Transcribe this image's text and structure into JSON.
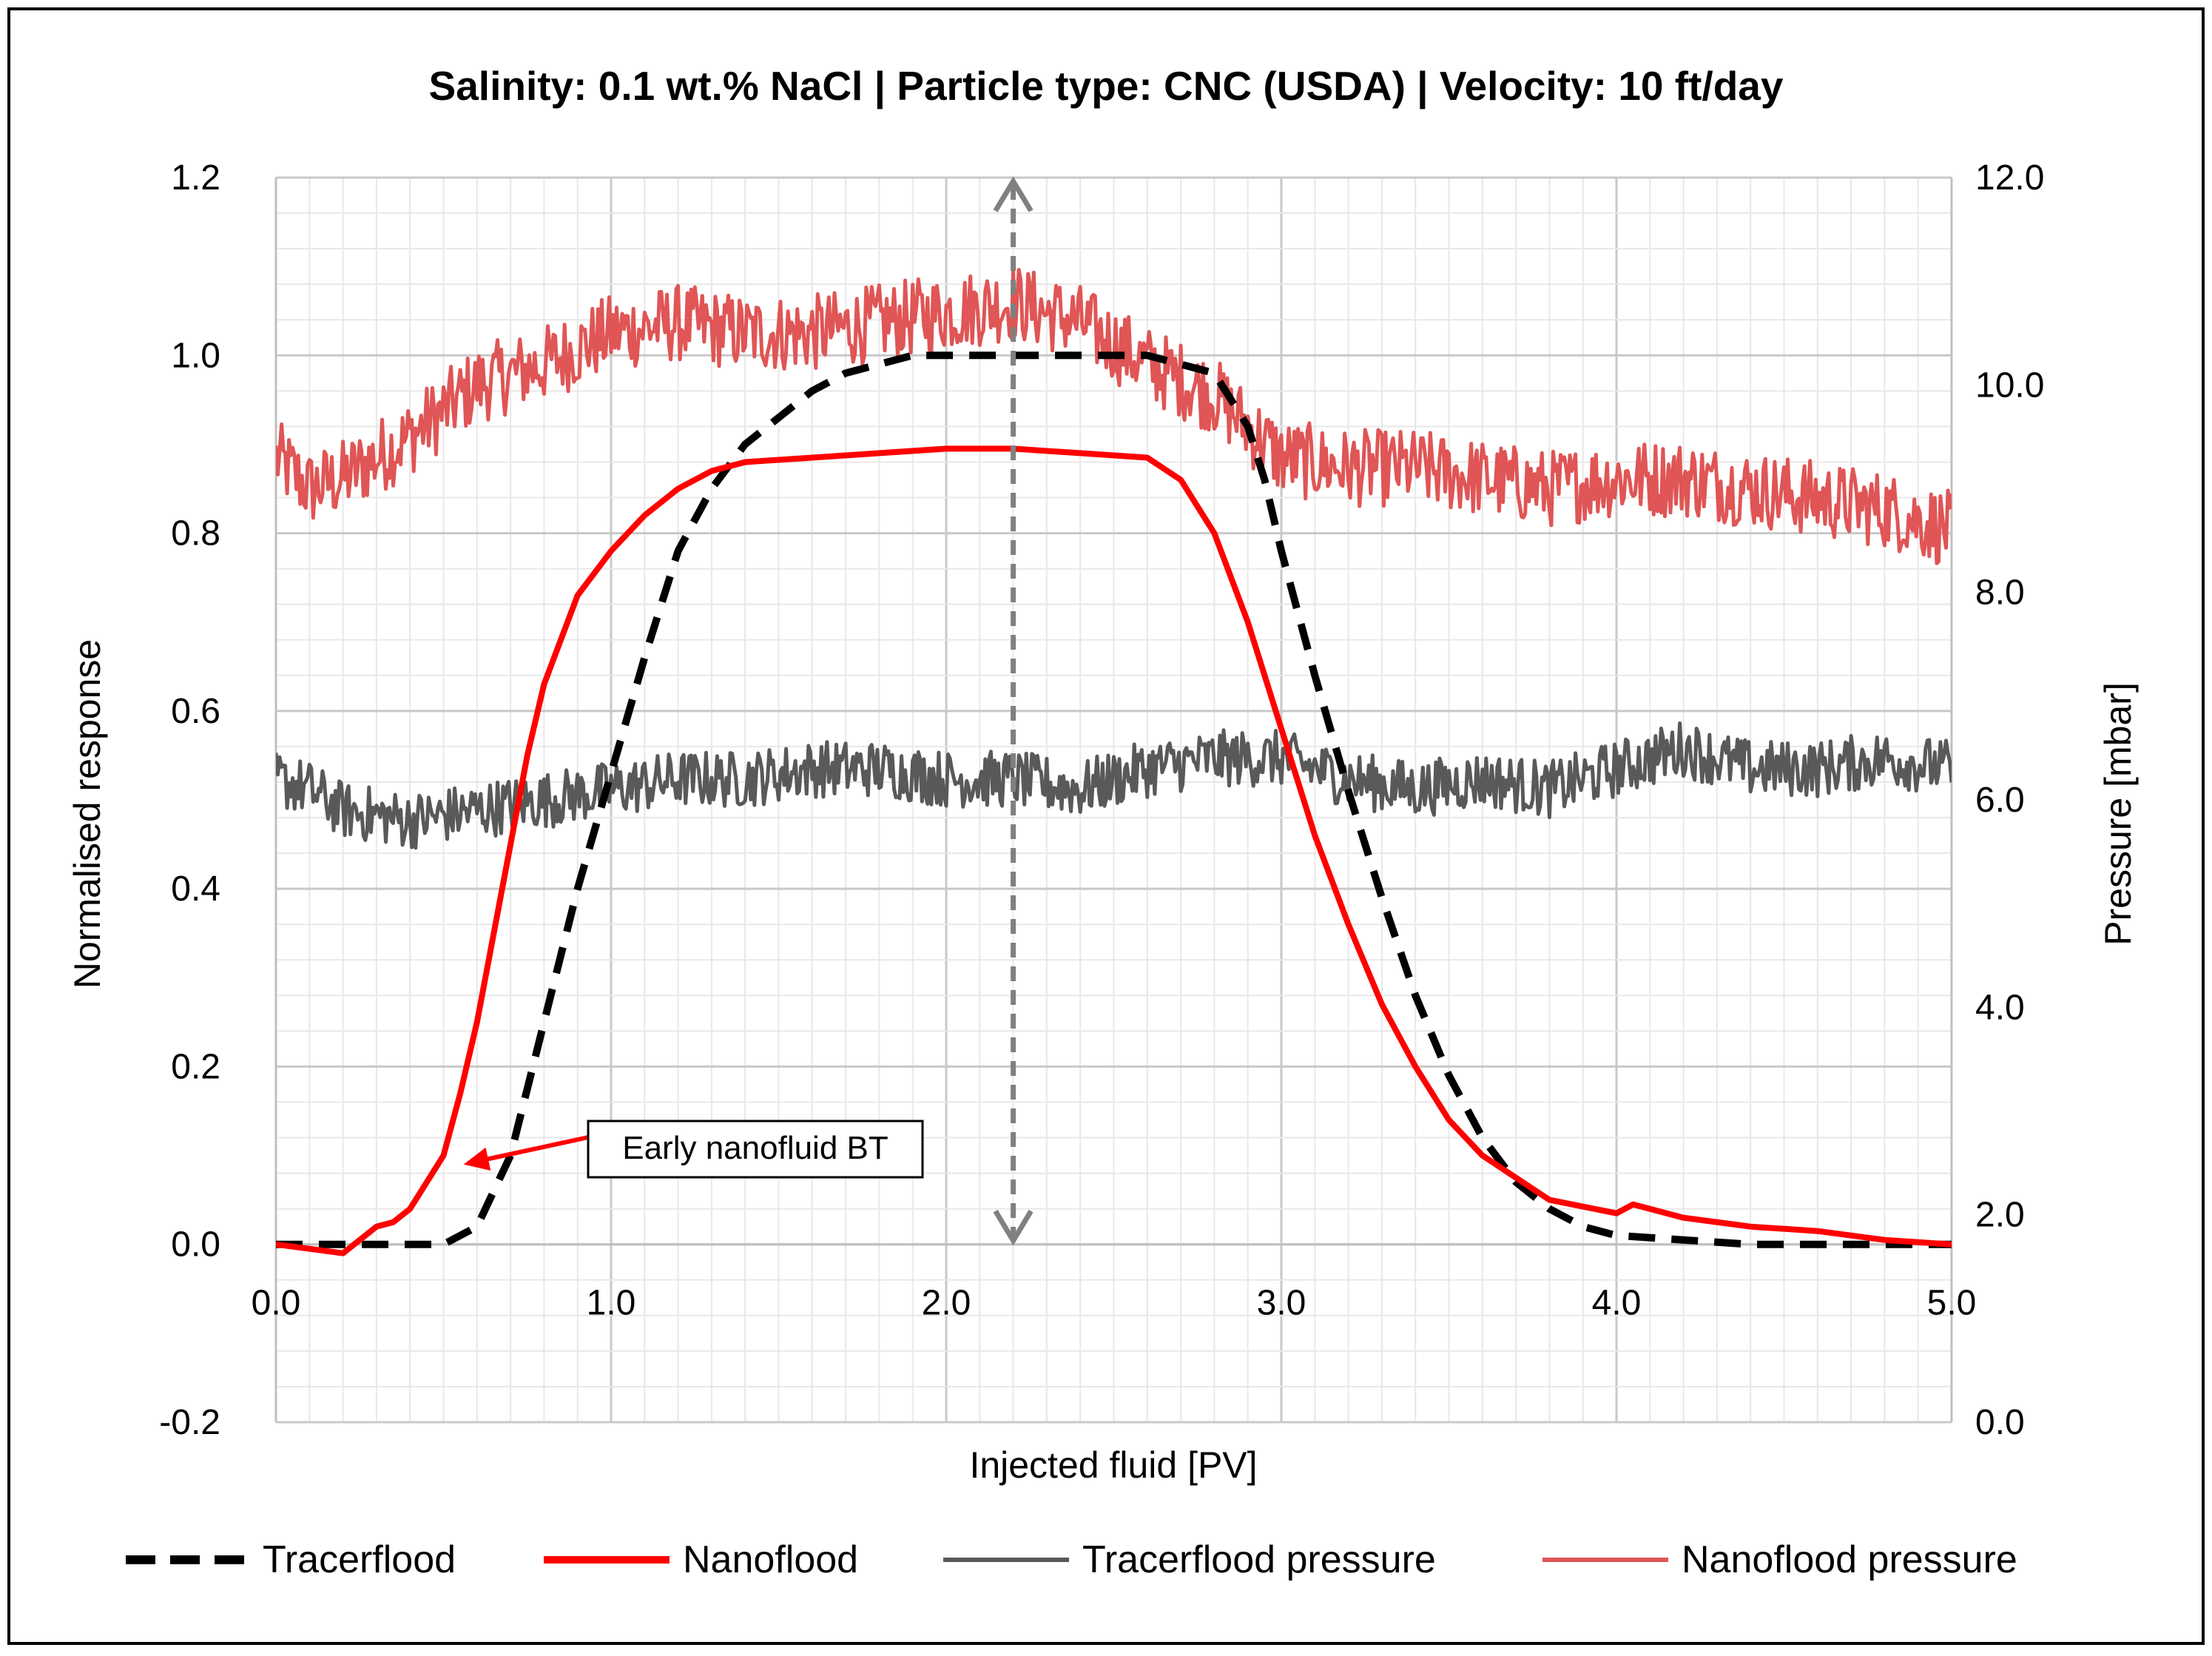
{
  "chart_data": {
    "type": "line",
    "title": "Salinity: 0.1 wt.% NaCl | Particle type: CNC (USDA) | Velocity: 10 ft/day",
    "xlabel": "Injected fluid [PV]",
    "ylabel": "Normalised response",
    "y2label": "Pressure [mbar]",
    "xlim": [
      0,
      5
    ],
    "ylim": [
      -0.2,
      1.2
    ],
    "y2lim": [
      0,
      12
    ],
    "x_ticks": [
      "0.0",
      "1.0",
      "2.0",
      "3.0",
      "4.0",
      "5.0"
    ],
    "y_ticks": [
      "-0.2",
      "0.0",
      "0.2",
      "0.4",
      "0.6",
      "0.8",
      "1.0",
      "1.2"
    ],
    "y2_ticks": [
      "0.0",
      "2.0",
      "4.0",
      "6.0",
      "8.0",
      "10.0",
      "12.0"
    ],
    "grid": true,
    "legend_position": "bottom",
    "colors": {
      "tracerflood": "#000000",
      "nanoflood": "#ff0000",
      "tracerflood_pressure": "#595959",
      "nanoflood_pressure": "#e05555",
      "arrow": "#808080"
    },
    "series": [
      {
        "name": "Tracerflood",
        "axis": "left",
        "style": "dashed",
        "x": [
          0.0,
          0.2,
          0.4,
          0.5,
          0.6,
          0.7,
          0.8,
          0.9,
          1.0,
          1.1,
          1.2,
          1.3,
          1.4,
          1.5,
          1.6,
          1.7,
          1.8,
          1.9,
          2.0,
          2.2,
          2.4,
          2.6,
          2.8,
          2.9,
          2.95,
          3.0,
          3.1,
          3.2,
          3.3,
          3.4,
          3.5,
          3.6,
          3.7,
          3.8,
          3.9,
          4.0,
          4.2,
          4.4,
          4.6,
          4.8,
          5.0
        ],
        "y": [
          0.0,
          0.0,
          0.0,
          0.0,
          0.02,
          0.1,
          0.25,
          0.4,
          0.53,
          0.66,
          0.78,
          0.85,
          0.9,
          0.93,
          0.96,
          0.98,
          0.99,
          1.0,
          1.0,
          1.0,
          1.0,
          1.0,
          0.98,
          0.92,
          0.86,
          0.78,
          0.64,
          0.51,
          0.39,
          0.28,
          0.19,
          0.12,
          0.07,
          0.04,
          0.02,
          0.01,
          0.005,
          0.0,
          0.0,
          0.0,
          0.0
        ]
      },
      {
        "name": "Nanoflood",
        "axis": "left",
        "style": "solid",
        "x": [
          0.0,
          0.1,
          0.2,
          0.3,
          0.35,
          0.4,
          0.45,
          0.5,
          0.55,
          0.6,
          0.7,
          0.75,
          0.8,
          0.9,
          1.0,
          1.1,
          1.2,
          1.3,
          1.4,
          1.6,
          1.8,
          2.0,
          2.2,
          2.4,
          2.6,
          2.7,
          2.8,
          2.9,
          3.0,
          3.1,
          3.2,
          3.3,
          3.4,
          3.5,
          3.6,
          3.8,
          4.0,
          4.05,
          4.1,
          4.2,
          4.4,
          4.6,
          4.8,
          5.0
        ],
        "y": [
          0.0,
          -0.005,
          -0.01,
          0.02,
          0.025,
          0.04,
          0.07,
          0.1,
          0.17,
          0.25,
          0.45,
          0.55,
          0.63,
          0.73,
          0.78,
          0.82,
          0.85,
          0.87,
          0.88,
          0.885,
          0.89,
          0.895,
          0.895,
          0.89,
          0.885,
          0.86,
          0.8,
          0.7,
          0.58,
          0.46,
          0.36,
          0.27,
          0.2,
          0.14,
          0.1,
          0.05,
          0.035,
          0.045,
          0.04,
          0.03,
          0.02,
          0.015,
          0.005,
          0.0
        ]
      },
      {
        "name": "Tracerflood pressure",
        "axis": "right",
        "style": "solid-noisy",
        "x": [
          0.0,
          0.1,
          0.2,
          0.4,
          0.6,
          0.8,
          1.0,
          1.2,
          1.4,
          1.6,
          1.8,
          2.0,
          2.2,
          2.4,
          2.6,
          2.8,
          3.0,
          3.2,
          3.4,
          3.6,
          3.8,
          4.0,
          4.2,
          4.4,
          4.6,
          4.8,
          5.0
        ],
        "y": [
          6.2,
          6.1,
          5.9,
          5.8,
          5.9,
          6.0,
          6.1,
          6.2,
          6.2,
          6.3,
          6.3,
          6.2,
          6.2,
          6.1,
          6.3,
          6.4,
          6.4,
          6.2,
          6.1,
          6.2,
          6.1,
          6.3,
          6.5,
          6.3,
          6.3,
          6.4,
          6.3
        ]
      },
      {
        "name": "Nanoflood pressure",
        "axis": "right",
        "style": "solid-noisy",
        "x": [
          0.0,
          0.1,
          0.2,
          0.4,
          0.6,
          0.8,
          1.0,
          1.2,
          1.4,
          1.6,
          1.8,
          2.0,
          2.2,
          2.4,
          2.6,
          2.8,
          3.0,
          3.2,
          3.4,
          3.6,
          3.8,
          4.0,
          4.2,
          4.4,
          4.6,
          4.8,
          5.0
        ],
        "y": [
          9.3,
          9.0,
          9.1,
          9.5,
          10.0,
          10.2,
          10.5,
          10.6,
          10.5,
          10.5,
          10.6,
          10.7,
          10.8,
          10.6,
          10.2,
          9.9,
          9.3,
          9.2,
          9.2,
          9.1,
          9.0,
          9.1,
          9.1,
          9.0,
          8.9,
          8.8,
          8.6
        ]
      }
    ],
    "annotations": [
      {
        "text": "Early nanofluid BT",
        "points_to_x": 0.56,
        "points_to_y": 0.09
      },
      {
        "type": "double-arrow",
        "x": 2.2,
        "y_from": 0.0,
        "y_to": 1.2
      }
    ],
    "legend": [
      "Tracerflood",
      "Nanoflood",
      "Tracerflood pressure",
      "Nanoflood pressure"
    ]
  }
}
